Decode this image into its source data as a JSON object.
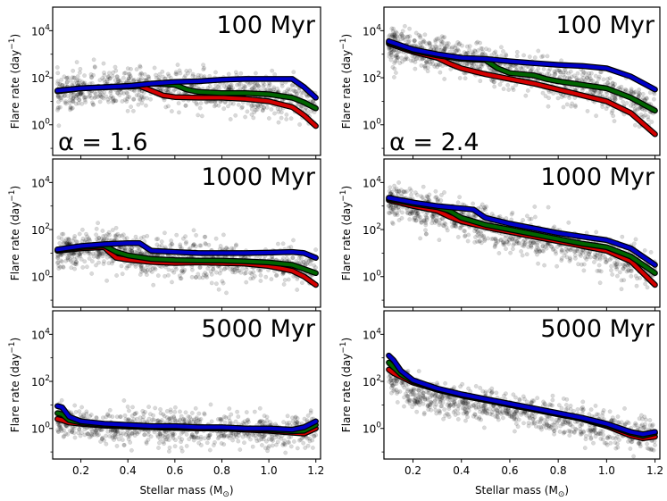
{
  "chart_data": {
    "type": "scatter+line",
    "yscale": "log",
    "xlim": [
      0.08,
      1.22
    ],
    "ylim_log10": [
      -1.3,
      5.0
    ],
    "x_ticks": [
      {
        "value": 0.2,
        "label": "0.2"
      },
      {
        "value": 0.4,
        "label": "0.4"
      },
      {
        "value": 0.6,
        "label": "0.6"
      },
      {
        "value": 0.8,
        "label": "0.8"
      },
      {
        "value": 1.0,
        "label": "1.0"
      },
      {
        "value": 1.2,
        "label": "1.2"
      }
    ],
    "y_ticks": [
      {
        "exp": 0,
        "base": "10",
        "power": "0"
      },
      {
        "exp": 2,
        "base": "10",
        "power": "2"
      },
      {
        "exp": 4,
        "base": "10",
        "power": "4"
      }
    ],
    "ylabel": "Flare rate (day",
    "ylabel_power": "−1",
    "ylabel_suffix": ")",
    "xlabel": "Stellar mass (M",
    "xlabel_sub": "⊙",
    "xlabel_suffix": ")",
    "series_colors": {
      "blue": "#0000c8",
      "green": "#006400",
      "red": "#d40000",
      "scatter": "#000000"
    },
    "panels": [
      {
        "title": "100 Myr",
        "alpha_label": "α = 1.6",
        "scatter": {
          "center_log10": [
            [
              0.1,
              1.35
            ],
            [
              0.3,
              1.55
            ],
            [
              0.5,
              1.55
            ],
            [
              0.7,
              1.55
            ],
            [
              0.9,
              1.3
            ],
            [
              1.1,
              1.1
            ],
            [
              1.2,
              0.9
            ]
          ],
          "spread": 0.4
        },
        "series": [
          {
            "name": "blue",
            "x": [
              0.1,
              0.2,
              0.3,
              0.4,
              0.45,
              0.5,
              0.6,
              0.7,
              0.8,
              0.9,
              1.0,
              1.1,
              1.15,
              1.2
            ],
            "log10_y": [
              1.45,
              1.55,
              1.6,
              1.65,
              1.7,
              1.75,
              1.82,
              1.85,
              1.92,
              1.95,
              1.95,
              1.95,
              1.6,
              1.15
            ]
          },
          {
            "name": "green",
            "x": [
              0.1,
              0.2,
              0.3,
              0.4,
              0.45,
              0.5,
              0.6,
              0.65,
              0.7,
              0.8,
              0.9,
              1.0,
              1.1,
              1.15,
              1.2
            ],
            "log10_y": [
              1.45,
              1.55,
              1.6,
              1.65,
              1.7,
              1.75,
              1.7,
              1.5,
              1.4,
              1.35,
              1.35,
              1.3,
              1.15,
              0.95,
              0.7
            ]
          },
          {
            "name": "red",
            "x": [
              0.1,
              0.2,
              0.3,
              0.4,
              0.45,
              0.5,
              0.55,
              0.6,
              0.7,
              0.8,
              0.9,
              1.0,
              1.1,
              1.15,
              1.2
            ],
            "log10_y": [
              1.42,
              1.55,
              1.6,
              1.62,
              1.65,
              1.45,
              1.25,
              1.18,
              1.15,
              1.15,
              1.1,
              1.0,
              0.75,
              0.4,
              -0.05
            ]
          }
        ]
      },
      {
        "title": "100 Myr",
        "alpha_label": "α = 2.4",
        "scatter": {
          "center_log10": [
            [
              0.1,
              3.4
            ],
            [
              0.3,
              3.0
            ],
            [
              0.5,
              2.55
            ],
            [
              0.7,
              2.1
            ],
            [
              0.9,
              1.6
            ],
            [
              1.1,
              1.0
            ],
            [
              1.2,
              0.5
            ]
          ],
          "spread": 0.4
        },
        "series": [
          {
            "name": "blue",
            "x": [
              0.1,
              0.2,
              0.3,
              0.4,
              0.5,
              0.6,
              0.7,
              0.8,
              0.9,
              1.0,
              1.1,
              1.2
            ],
            "log10_y": [
              3.55,
              3.2,
              3.0,
              2.85,
              2.8,
              2.7,
              2.62,
              2.55,
              2.5,
              2.4,
              2.05,
              1.5
            ]
          },
          {
            "name": "green",
            "x": [
              0.1,
              0.2,
              0.3,
              0.4,
              0.5,
              0.55,
              0.6,
              0.7,
              0.75,
              0.8,
              0.9,
              1.0,
              1.1,
              1.2
            ],
            "log10_y": [
              3.5,
              3.15,
              2.95,
              2.8,
              2.75,
              2.4,
              2.2,
              2.1,
              1.95,
              1.85,
              1.7,
              1.55,
              1.15,
              0.6
            ]
          },
          {
            "name": "red",
            "x": [
              0.1,
              0.2,
              0.3,
              0.35,
              0.4,
              0.5,
              0.6,
              0.7,
              0.8,
              0.9,
              1.0,
              1.1,
              1.2
            ],
            "log10_y": [
              3.45,
              3.1,
              2.85,
              2.6,
              2.4,
              2.15,
              1.95,
              1.75,
              1.5,
              1.25,
              1.0,
              0.5,
              -0.4
            ]
          }
        ]
      },
      {
        "title": "1000 Myr",
        "alpha_label": "",
        "scatter": {
          "center_log10": [
            [
              0.1,
              1.1
            ],
            [
              0.3,
              1.2
            ],
            [
              0.5,
              0.85
            ],
            [
              0.7,
              0.7
            ],
            [
              0.9,
              0.6
            ],
            [
              1.1,
              0.55
            ],
            [
              1.2,
              0.3
            ]
          ],
          "spread": 0.4
        },
        "series": [
          {
            "name": "blue",
            "x": [
              0.1,
              0.2,
              0.3,
              0.4,
              0.45,
              0.5,
              0.6,
              0.7,
              0.8,
              0.9,
              1.0,
              1.1,
              1.15,
              1.2
            ],
            "log10_y": [
              1.15,
              1.3,
              1.38,
              1.42,
              1.42,
              1.1,
              1.05,
              1.0,
              1.0,
              1.0,
              1.02,
              1.05,
              1.0,
              0.8
            ]
          },
          {
            "name": "green",
            "x": [
              0.1,
              0.2,
              0.3,
              0.35,
              0.4,
              0.5,
              0.6,
              0.7,
              0.8,
              0.9,
              1.0,
              1.1,
              1.2
            ],
            "log10_y": [
              1.12,
              1.25,
              1.32,
              1.05,
              0.9,
              0.75,
              0.7,
              0.68,
              0.68,
              0.65,
              0.6,
              0.5,
              0.15
            ]
          },
          {
            "name": "red",
            "x": [
              0.1,
              0.2,
              0.3,
              0.32,
              0.35,
              0.4,
              0.5,
              0.6,
              0.7,
              0.8,
              0.9,
              1.0,
              1.1,
              1.15,
              1.2
            ],
            "log10_y": [
              1.1,
              1.2,
              1.25,
              1.05,
              0.8,
              0.72,
              0.62,
              0.58,
              0.6,
              0.58,
              0.55,
              0.45,
              0.25,
              0.0,
              -0.35
            ]
          }
        ]
      },
      {
        "title": "1000 Myr",
        "alpha_label": "",
        "scatter": {
          "center_log10": [
            [
              0.1,
              3.2
            ],
            [
              0.3,
              2.7
            ],
            [
              0.5,
              2.1
            ],
            [
              0.7,
              1.55
            ],
            [
              0.9,
              1.15
            ],
            [
              1.1,
              0.6
            ],
            [
              1.2,
              0.3
            ]
          ],
          "spread": 0.4
        },
        "series": [
          {
            "name": "blue",
            "x": [
              0.1,
              0.2,
              0.3,
              0.4,
              0.45,
              0.5,
              0.6,
              0.7,
              0.8,
              0.9,
              1.0,
              1.1,
              1.2
            ],
            "log10_y": [
              3.35,
              3.15,
              3.0,
              2.9,
              2.85,
              2.5,
              2.25,
              2.05,
              1.85,
              1.7,
              1.55,
              1.2,
              0.5
            ]
          },
          {
            "name": "green",
            "x": [
              0.1,
              0.2,
              0.3,
              0.35,
              0.4,
              0.5,
              0.6,
              0.7,
              0.8,
              0.9,
              1.0,
              1.1,
              1.2
            ],
            "log10_y": [
              3.3,
              3.1,
              2.95,
              2.8,
              2.5,
              2.2,
              2.0,
              1.8,
              1.6,
              1.4,
              1.25,
              0.85,
              0.15
            ]
          },
          {
            "name": "red",
            "x": [
              0.1,
              0.2,
              0.3,
              0.35,
              0.4,
              0.5,
              0.6,
              0.7,
              0.8,
              0.9,
              1.0,
              1.1,
              1.2
            ],
            "log10_y": [
              3.25,
              3.0,
              2.8,
              2.55,
              2.35,
              2.1,
              1.9,
              1.7,
              1.5,
              1.3,
              1.1,
              0.65,
              -0.35
            ]
          }
        ]
      },
      {
        "title": "5000 Myr",
        "alpha_label": "",
        "scatter": {
          "center_log10": [
            [
              0.1,
              0.4
            ],
            [
              0.3,
              0.05
            ],
            [
              0.5,
              0.0
            ],
            [
              0.7,
              0.0
            ],
            [
              0.9,
              -0.1
            ],
            [
              1.1,
              -0.15
            ],
            [
              1.2,
              0.0
            ]
          ],
          "spread": 0.35
        },
        "series": [
          {
            "name": "blue",
            "x": [
              0.1,
              0.12,
              0.15,
              0.2,
              0.3,
              0.4,
              0.5,
              0.6,
              0.7,
              0.8,
              0.9,
              1.0,
              1.1,
              1.15,
              1.2
            ],
            "log10_y": [
              0.95,
              0.9,
              0.5,
              0.3,
              0.2,
              0.15,
              0.1,
              0.1,
              0.05,
              0.05,
              0.0,
              0.0,
              -0.05,
              0.05,
              0.3
            ]
          },
          {
            "name": "green",
            "x": [
              0.1,
              0.12,
              0.15,
              0.2,
              0.3,
              0.4,
              0.5,
              0.6,
              0.7,
              0.8,
              0.9,
              1.0,
              1.1,
              1.15,
              1.2
            ],
            "log10_y": [
              0.65,
              0.6,
              0.35,
              0.25,
              0.15,
              0.12,
              0.08,
              0.05,
              0.05,
              0.02,
              0.0,
              -0.05,
              -0.12,
              -0.1,
              0.15
            ]
          },
          {
            "name": "red",
            "x": [
              0.1,
              0.12,
              0.15,
              0.2,
              0.3,
              0.4,
              0.5,
              0.6,
              0.7,
              0.8,
              0.9,
              1.0,
              1.1,
              1.15,
              1.2
            ],
            "log10_y": [
              0.4,
              0.35,
              0.25,
              0.2,
              0.12,
              0.08,
              0.05,
              0.02,
              0.0,
              0.0,
              -0.05,
              -0.1,
              -0.18,
              -0.22,
              0.0
            ]
          }
        ]
      },
      {
        "title": "5000 Myr",
        "alpha_label": "",
        "scatter": {
          "center_log10": [
            [
              0.1,
              2.3
            ],
            [
              0.2,
              1.5
            ],
            [
              0.4,
              1.1
            ],
            [
              0.6,
              0.8
            ],
            [
              0.8,
              0.45
            ],
            [
              1.0,
              0.0
            ],
            [
              1.2,
              -0.3
            ]
          ],
          "spread": 0.35
        },
        "series": [
          {
            "name": "blue",
            "x": [
              0.1,
              0.12,
              0.15,
              0.2,
              0.3,
              0.4,
              0.5,
              0.6,
              0.7,
              0.8,
              0.9,
              1.0,
              1.1,
              1.15,
              1.2
            ],
            "log10_y": [
              3.1,
              2.9,
              2.45,
              2.05,
              1.7,
              1.45,
              1.25,
              1.05,
              0.85,
              0.65,
              0.45,
              0.2,
              -0.15,
              -0.25,
              -0.15
            ]
          },
          {
            "name": "green",
            "x": [
              0.1,
              0.12,
              0.15,
              0.2,
              0.3,
              0.4,
              0.5,
              0.6,
              0.7,
              0.8,
              0.9,
              1.0,
              1.1,
              1.15,
              1.2
            ],
            "log10_y": [
              2.8,
              2.6,
              2.3,
              2.0,
              1.68,
              1.42,
              1.22,
              1.02,
              0.82,
              0.62,
              0.42,
              0.15,
              -0.2,
              -0.32,
              -0.2
            ]
          },
          {
            "name": "red",
            "x": [
              0.1,
              0.12,
              0.15,
              0.2,
              0.3,
              0.4,
              0.5,
              0.6,
              0.7,
              0.8,
              0.9,
              1.0,
              1.1,
              1.15,
              1.2
            ],
            "log10_y": [
              2.5,
              2.35,
              2.2,
              1.95,
              1.65,
              1.4,
              1.2,
              1.0,
              0.8,
              0.6,
              0.4,
              0.1,
              -0.3,
              -0.42,
              -0.35
            ]
          }
        ]
      }
    ]
  }
}
